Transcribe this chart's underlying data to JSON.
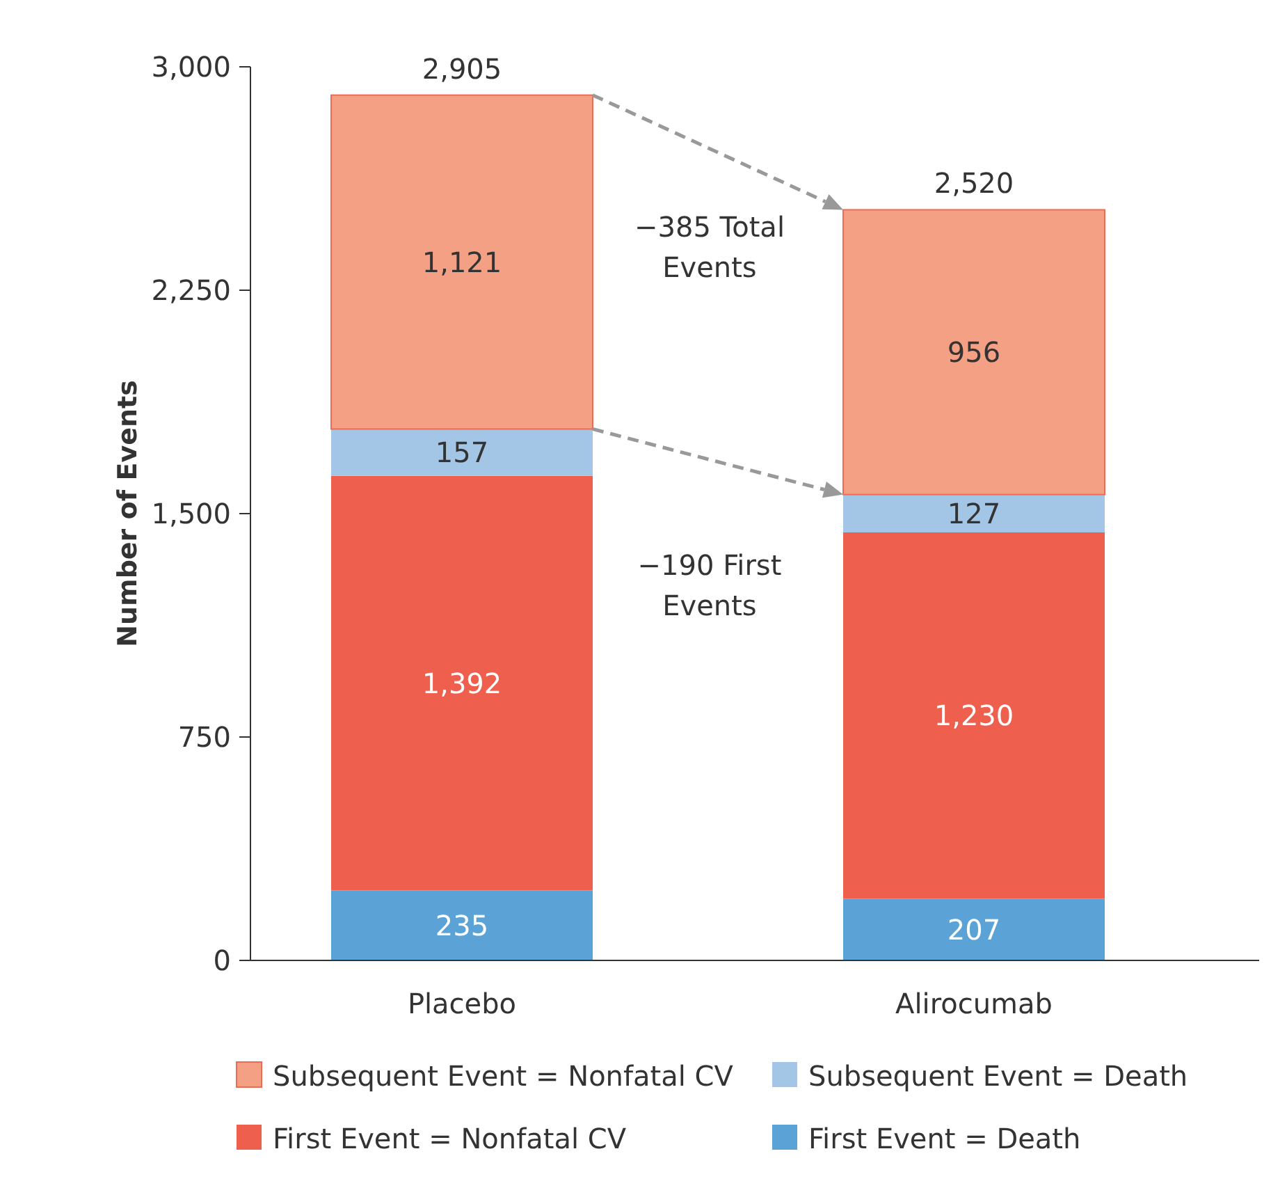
{
  "chart_data": {
    "type": "bar",
    "stacked": true,
    "ylabel": "Number of Events",
    "categories": [
      "Placebo",
      "Alirocumab"
    ],
    "ylim": [
      0,
      3000
    ],
    "yticks": [
      0,
      750,
      {
        "value": 1500,
        "label": "1,500"
      },
      {
        "value": 2250,
        "label": "2,250"
      },
      {
        "value": 3000,
        "label": "3,000"
      }
    ],
    "series": [
      {
        "name": "First Event = Death",
        "color": "#5ba3d7",
        "values": [
          235,
          207
        ],
        "value_labels": [
          "235",
          "207"
        ]
      },
      {
        "name": "First Event = Nonfatal CV",
        "color": "#ef5f4d",
        "values": [
          1392,
          1230
        ],
        "value_labels": [
          "1,392",
          "1,230"
        ]
      },
      {
        "name": "Subsequent Event = Death",
        "color": "#a3c6e6",
        "values": [
          157,
          127
        ],
        "value_labels": [
          "157",
          "127"
        ]
      },
      {
        "name": "Subsequent Event = Nonfatal CV",
        "color": "#f4a084",
        "values": [
          1121,
          956
        ],
        "value_labels": [
          "1,121",
          "956"
        ]
      }
    ],
    "totals": [
      "2,905",
      "2,520"
    ],
    "legend": "bottom",
    "annotations": [
      "−385 Total\nEvents",
      "−190 First\nEvents"
    ]
  }
}
